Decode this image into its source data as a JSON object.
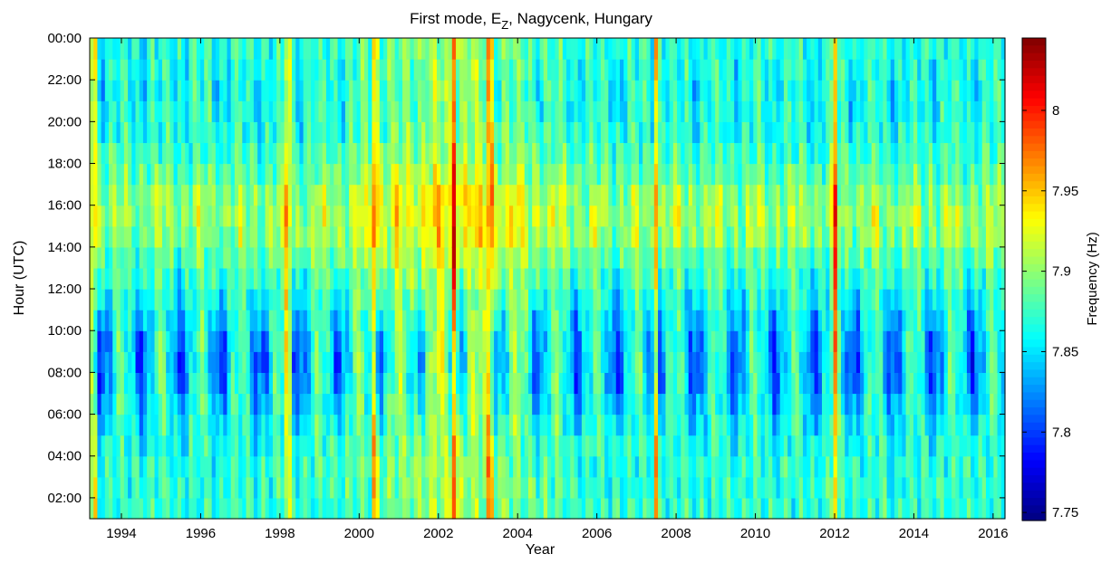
{
  "chart_data": {
    "type": "heatmap",
    "title": {
      "main": "First mode, E",
      "subscript": "Z",
      "rest": ", Nagycenk, Hungary"
    },
    "xlabel": "Year",
    "ylabel": "Hour (UTC)",
    "colorbar_label": "Frequency (Hz)",
    "x_range": [
      1993.2,
      2016.3
    ],
    "y_range_hours": [
      1,
      24
    ],
    "x_ticks": [
      {
        "v": 1994,
        "label": "1994"
      },
      {
        "v": 1996,
        "label": "1996"
      },
      {
        "v": 1998,
        "label": "1998"
      },
      {
        "v": 2000,
        "label": "2000"
      },
      {
        "v": 2002,
        "label": "2002"
      },
      {
        "v": 2004,
        "label": "2004"
      },
      {
        "v": 2006,
        "label": "2006"
      },
      {
        "v": 2008,
        "label": "2008"
      },
      {
        "v": 2010,
        "label": "2010"
      },
      {
        "v": 2012,
        "label": "2012"
      },
      {
        "v": 2014,
        "label": "2014"
      },
      {
        "v": 2016,
        "label": "2016"
      }
    ],
    "y_ticks": [
      {
        "v": 2,
        "label": "02:00"
      },
      {
        "v": 4,
        "label": "04:00"
      },
      {
        "v": 6,
        "label": "06:00"
      },
      {
        "v": 8,
        "label": "08:00"
      },
      {
        "v": 10,
        "label": "10:00"
      },
      {
        "v": 12,
        "label": "12:00"
      },
      {
        "v": 14,
        "label": "14:00"
      },
      {
        "v": 16,
        "label": "16:00"
      },
      {
        "v": 18,
        "label": "18:00"
      },
      {
        "v": 20,
        "label": "20:00"
      },
      {
        "v": 22,
        "label": "22:00"
      },
      {
        "v": 24,
        "label": "00:00"
      }
    ],
    "colorbar_range": [
      7.745,
      8.045
    ],
    "colorbar_ticks": [
      {
        "v": 7.75,
        "label": "7.75"
      },
      {
        "v": 7.8,
        "label": "7.8"
      },
      {
        "v": 7.85,
        "label": "7.85"
      },
      {
        "v": 7.9,
        "label": "7.9"
      },
      {
        "v": 7.95,
        "label": "7.95"
      },
      {
        "v": 8.0,
        "label": "8"
      }
    ],
    "colormap": "jet",
    "approximate_pattern": {
      "base_frequency_hz": 7.87,
      "summer_daytime_low_hz": 7.77,
      "afternoon_high_hz": 7.96,
      "peak_hz": 8.04,
      "high_anomaly_years": [
        1993.3,
        1998.2,
        2000.4,
        2002.4,
        2003.3,
        2007.5,
        2012.0
      ]
    }
  }
}
